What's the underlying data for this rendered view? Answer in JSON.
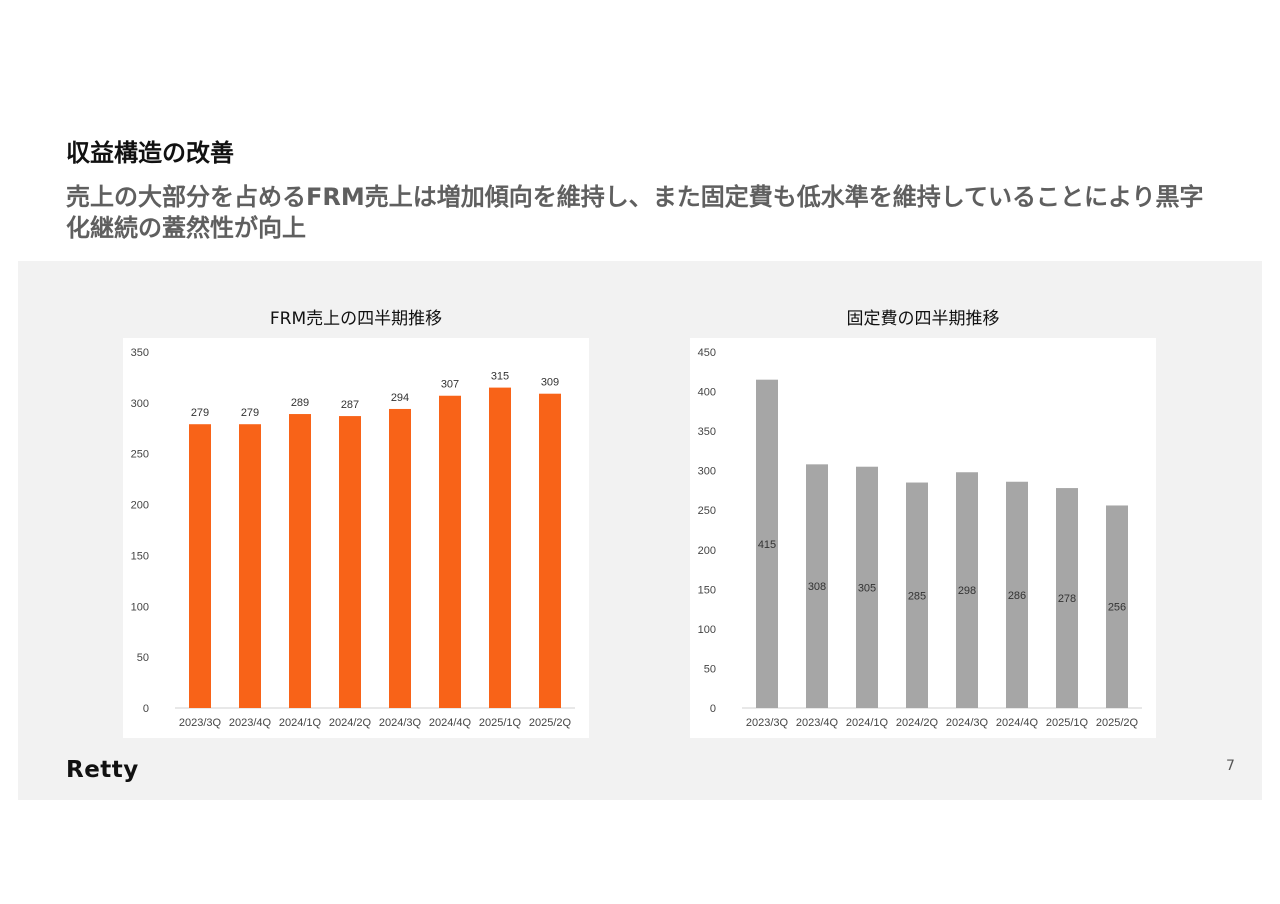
{
  "slide": {
    "title": "収益構造の改善",
    "subtitle": "売上の大部分を占めるFRM売上は増加傾向を維持し、また固定費も低水準を維持していることにより黒字化継続の蓋然性が向上",
    "logo_text": "Retty",
    "page_number": "7"
  },
  "colors": {
    "accent": "#f86318",
    "gray_bar": "#a6a6a6",
    "panel_bg": "#f2f2f2"
  },
  "chart_data": [
    {
      "type": "bar",
      "title": "FRM売上の四半期推移",
      "categories": [
        "2023/3Q",
        "2023/4Q",
        "2024/1Q",
        "2024/2Q",
        "2024/3Q",
        "2024/4Q",
        "2025/1Q",
        "2025/2Q"
      ],
      "values": [
        279,
        279,
        289,
        287,
        294,
        307,
        315,
        309
      ],
      "ylim": [
        0,
        350
      ],
      "yticks": [
        0,
        50,
        100,
        150,
        200,
        250,
        300,
        350
      ],
      "color": "#f86318",
      "label_position": "above",
      "grid": false
    },
    {
      "type": "bar",
      "title": "固定費の四半期推移",
      "categories": [
        "2023/3Q",
        "2023/4Q",
        "2024/1Q",
        "2024/2Q",
        "2024/3Q",
        "2024/4Q",
        "2025/1Q",
        "2025/2Q"
      ],
      "values": [
        415,
        308,
        305,
        285,
        298,
        286,
        278,
        256
      ],
      "ylim": [
        0,
        450
      ],
      "yticks": [
        0,
        50,
        100,
        150,
        200,
        250,
        300,
        350,
        400,
        450
      ],
      "color": "#a6a6a6",
      "label_position": "inside-middle",
      "grid": false
    }
  ]
}
